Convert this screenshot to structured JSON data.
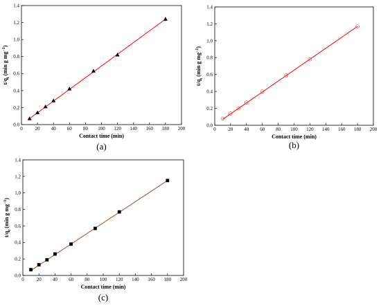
{
  "figure": {
    "panels": [
      "(a)",
      "(b)",
      "(c)"
    ]
  },
  "chart_data": [
    {
      "type": "scatter",
      "panel_label": "(a)",
      "xlabel": "Contact time (min)",
      "ylabel": "t/q",
      "ylabel_sub": "t",
      "ylabel_unit": " (min g mg",
      "ylabel_sup": "−1",
      "ylabel_end": ")",
      "xlim": [
        0,
        200
      ],
      "ylim": [
        0,
        1.4
      ],
      "xticks": [
        "0",
        "20",
        "40",
        "60",
        "80",
        "100",
        "120",
        "140",
        "160",
        "180",
        "200"
      ],
      "yticks": [
        "0.0",
        "0.2",
        "0.4",
        "0.6",
        "0.8",
        "1.0",
        "1.2",
        "1.4"
      ],
      "marker": "triangle",
      "marker_color": "#000000",
      "line_color": "#ff0000",
      "series": [
        {
          "x": [
            10,
            20,
            30,
            40,
            60,
            90,
            120,
            180
          ],
          "y": [
            0.07,
            0.14,
            0.21,
            0.28,
            0.42,
            0.63,
            0.82,
            1.24
          ]
        }
      ],
      "fit_line": {
        "x": [
          10,
          180
        ],
        "y": [
          0.07,
          1.24
        ]
      }
    },
    {
      "type": "scatter",
      "panel_label": "(b)",
      "xlabel": "Contact time (min)",
      "ylabel": "t/q",
      "ylabel_sub": "t",
      "ylabel_unit": " (min g mg",
      "ylabel_sup": "−1",
      "ylabel_end": ")",
      "xlim": [
        0,
        200
      ],
      "ylim": [
        0,
        1.4
      ],
      "xticks": [
        "0",
        "20",
        "40",
        "60",
        "80",
        "100",
        "120",
        "140",
        "160",
        "180",
        "200"
      ],
      "yticks": [
        "0.0",
        "0.2",
        "0.4",
        "0.6",
        "0.8",
        "1.0",
        "1.2",
        "1.4"
      ],
      "marker": "open-circle",
      "marker_color": "#ff4040",
      "line_color": "#ff0000",
      "series": [
        {
          "x": [
            10,
            20,
            30,
            40,
            60,
            90,
            120,
            180
          ],
          "y": [
            0.08,
            0.14,
            0.2,
            0.27,
            0.4,
            0.59,
            0.78,
            1.17
          ]
        }
      ],
      "fit_line": {
        "x": [
          10,
          180
        ],
        "y": [
          0.07,
          1.17
        ]
      }
    },
    {
      "type": "scatter",
      "panel_label": "(c)",
      "xlabel": "Contact time (min)",
      "ylabel": "t/q",
      "ylabel_sub": "t",
      "ylabel_unit": " (min g mg",
      "ylabel_sup": "−1",
      "ylabel_end": ")",
      "xlim": [
        0,
        200
      ],
      "ylim": [
        0,
        1.4
      ],
      "xticks": [
        "0",
        "20",
        "40",
        "60",
        "80",
        "100",
        "120",
        "140",
        "160",
        "180",
        "200"
      ],
      "yticks": [
        "0.0",
        "0.2",
        "0.4",
        "0.6",
        "0.8",
        "1.0",
        "1.2",
        "1.4"
      ],
      "marker": "square",
      "marker_color": "#000000",
      "line_color": "#a0522d",
      "series": [
        {
          "x": [
            10,
            20,
            30,
            40,
            60,
            90,
            120,
            180
          ],
          "y": [
            0.07,
            0.13,
            0.19,
            0.26,
            0.38,
            0.57,
            0.77,
            1.15
          ]
        }
      ],
      "fit_line": {
        "x": [
          10,
          180
        ],
        "y": [
          0.06,
          1.15
        ]
      }
    }
  ]
}
